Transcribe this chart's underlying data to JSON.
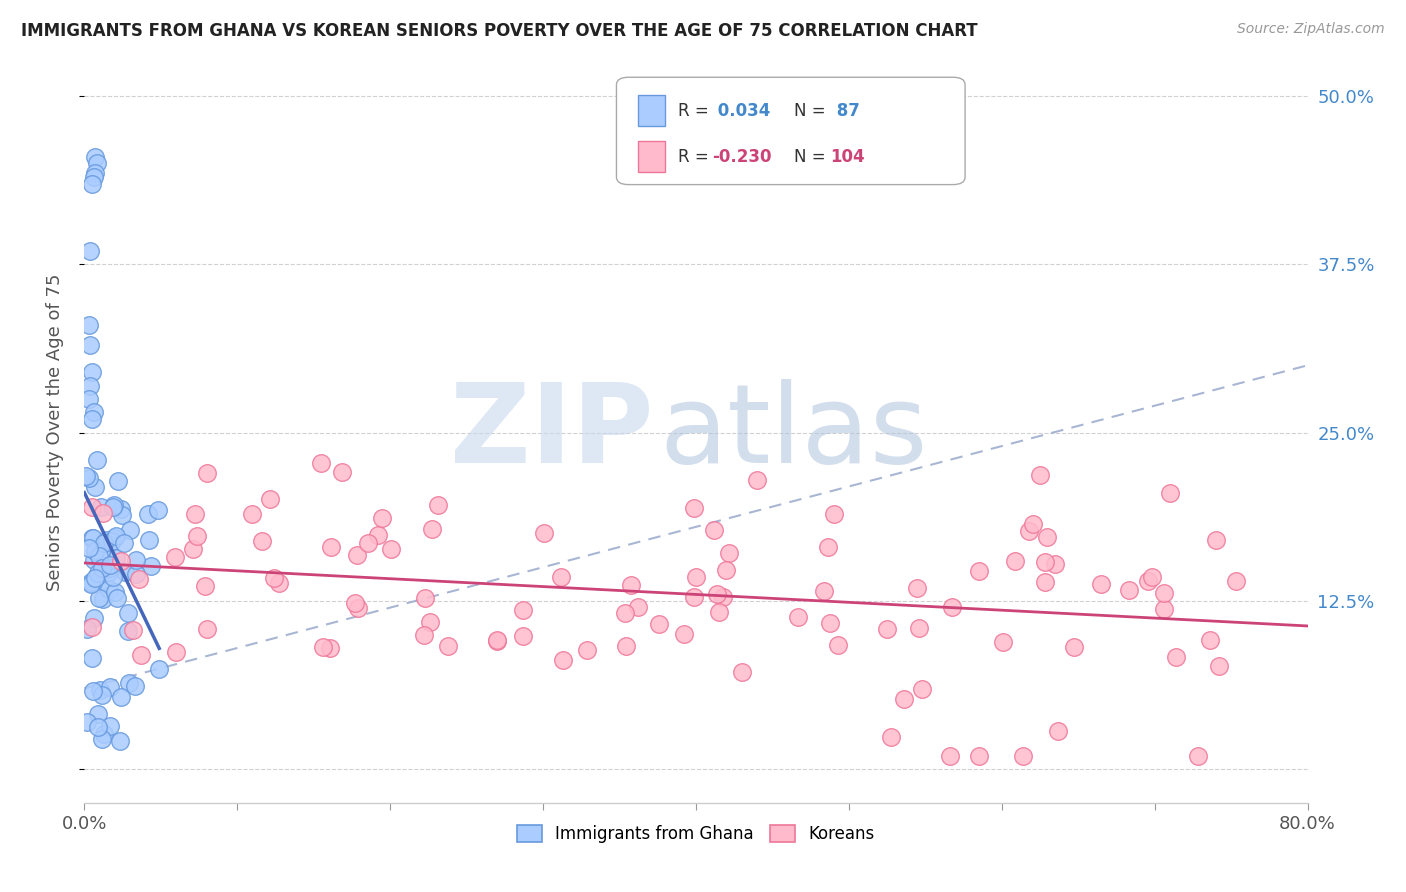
{
  "title": "IMMIGRANTS FROM GHANA VS KOREAN SENIORS POVERTY OVER THE AGE OF 75 CORRELATION CHART",
  "source": "Source: ZipAtlas.com",
  "ylabel": "Seniors Poverty Over the Age of 75",
  "blue_color": "#6699dd",
  "pink_color": "#ee7799",
  "blue_fill": "#aaccff",
  "pink_fill": "#ffbbcc",
  "blue_line": "#4466bb",
  "pink_line": "#cc4477",
  "dash_line": "#99aacc",
  "watermark_zip": "#c8d8ee",
  "watermark_atlas": "#b0c4de",
  "xmin": 0.0,
  "xmax": 0.8,
  "ymin": -0.025,
  "ymax": 0.525,
  "ghana_r": 0.034,
  "ghana_n": 87,
  "korean_r": -0.23,
  "korean_n": 104,
  "background_color": "#ffffff",
  "grid_color": "#cccccc",
  "title_color": "#222222",
  "label_color": "#555555",
  "right_tick_color": "#4488cc"
}
